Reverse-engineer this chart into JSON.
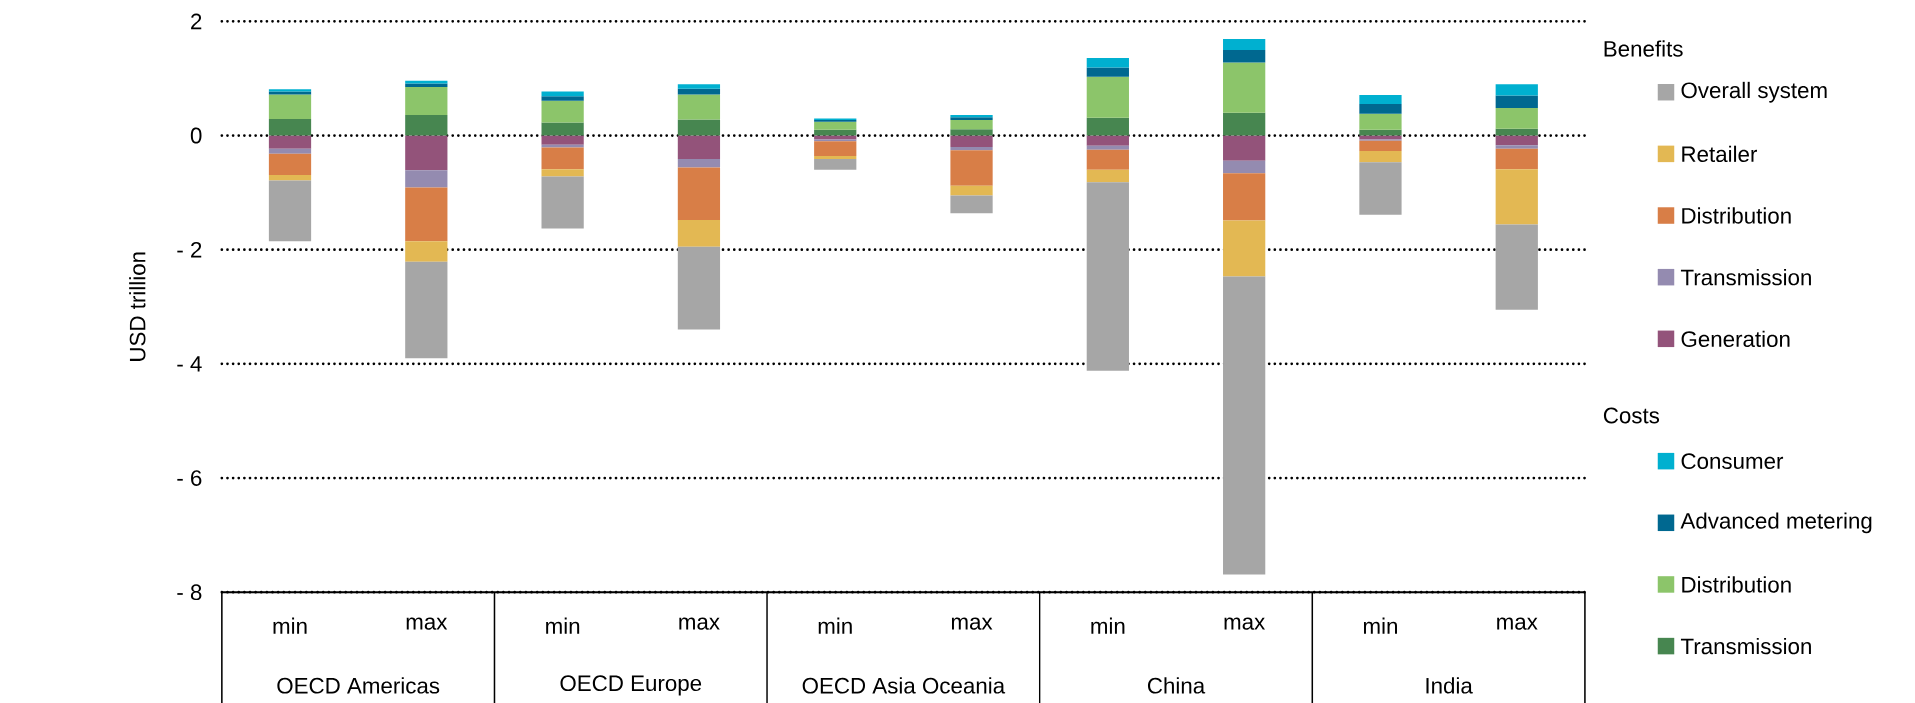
{
  "chart_data": {
    "type": "bar",
    "stacked": true,
    "ylabel": "USD trillion",
    "legend": "right",
    "legend_title": "Benefits",
    "grid": "y",
    "categories": [
      "min",
      "max",
      "min",
      "max",
      "min",
      "max",
      "min",
      "max",
      "min",
      "max"
    ],
    "ylim": [
      -8,
      2
    ],
    "yticks": [
      {
        "value": -8,
        "label": "- 8"
      },
      {
        "value": -6,
        "label": "- 6"
      },
      {
        "value": -4,
        "label": "- 4"
      },
      {
        "value": -2,
        "label": "- 2"
      },
      0,
      2
    ],
    "series": [
      {
        "name": "Generation",
        "color": "#93537a",
        "values": [
          -0.23,
          -0.61,
          -0.16,
          -0.41,
          -0.07,
          -0.2,
          -0.18,
          -0.44,
          -0.07,
          -0.17
        ]
      },
      {
        "name": "Transmission",
        "color": "#948bb0",
        "values": [
          -0.09,
          -0.3,
          -0.05,
          -0.15,
          -0.03,
          -0.06,
          -0.07,
          -0.22,
          -0.02,
          -0.06
        ]
      },
      {
        "name": "Distribution",
        "color": "#d87e47",
        "values": [
          -0.37,
          -0.94,
          -0.38,
          -0.92,
          -0.26,
          -0.62,
          -0.35,
          -0.83,
          -0.18,
          -0.36
        ]
      },
      {
        "name": "Retailer",
        "color": "#e3b853",
        "values": [
          -0.1,
          -0.36,
          -0.13,
          -0.47,
          -0.05,
          -0.17,
          -0.22,
          -0.98,
          -0.2,
          -0.97
        ]
      },
      {
        "name": "Overall system",
        "color": "#a6a6a6",
        "values": [
          -1.06,
          -1.69,
          -0.91,
          -1.45,
          -0.19,
          -0.31,
          -3.3,
          -5.22,
          -0.92,
          -1.49
        ]
      },
      {
        "name": "Transmission",
        "color": "#478650",
        "values": [
          0.29,
          0.36,
          0.23,
          0.28,
          0.1,
          0.11,
          0.31,
          0.4,
          0.1,
          0.12
        ]
      },
      {
        "name": "Distribution",
        "color": "#8cc56a",
        "values": [
          0.43,
          0.49,
          0.38,
          0.44,
          0.14,
          0.16,
          0.72,
          0.88,
          0.28,
          0.36
        ]
      },
      {
        "name": "Advanced metering",
        "color": "#006890",
        "values": [
          0.05,
          0.06,
          0.08,
          0.1,
          0.03,
          0.05,
          0.16,
          0.22,
          0.17,
          0.22
        ]
      },
      {
        "name": "Consumer",
        "color": "#00b0d0",
        "values": [
          0.04,
          0.05,
          0.08,
          0.08,
          0.03,
          0.04,
          0.17,
          0.19,
          0.16,
          0.2
        ]
      }
    ],
    "annotations": [
      "OECD Americas",
      "OECD Europe",
      "OECD Asia Oceania",
      "China",
      "India",
      "Costs"
    ]
  }
}
